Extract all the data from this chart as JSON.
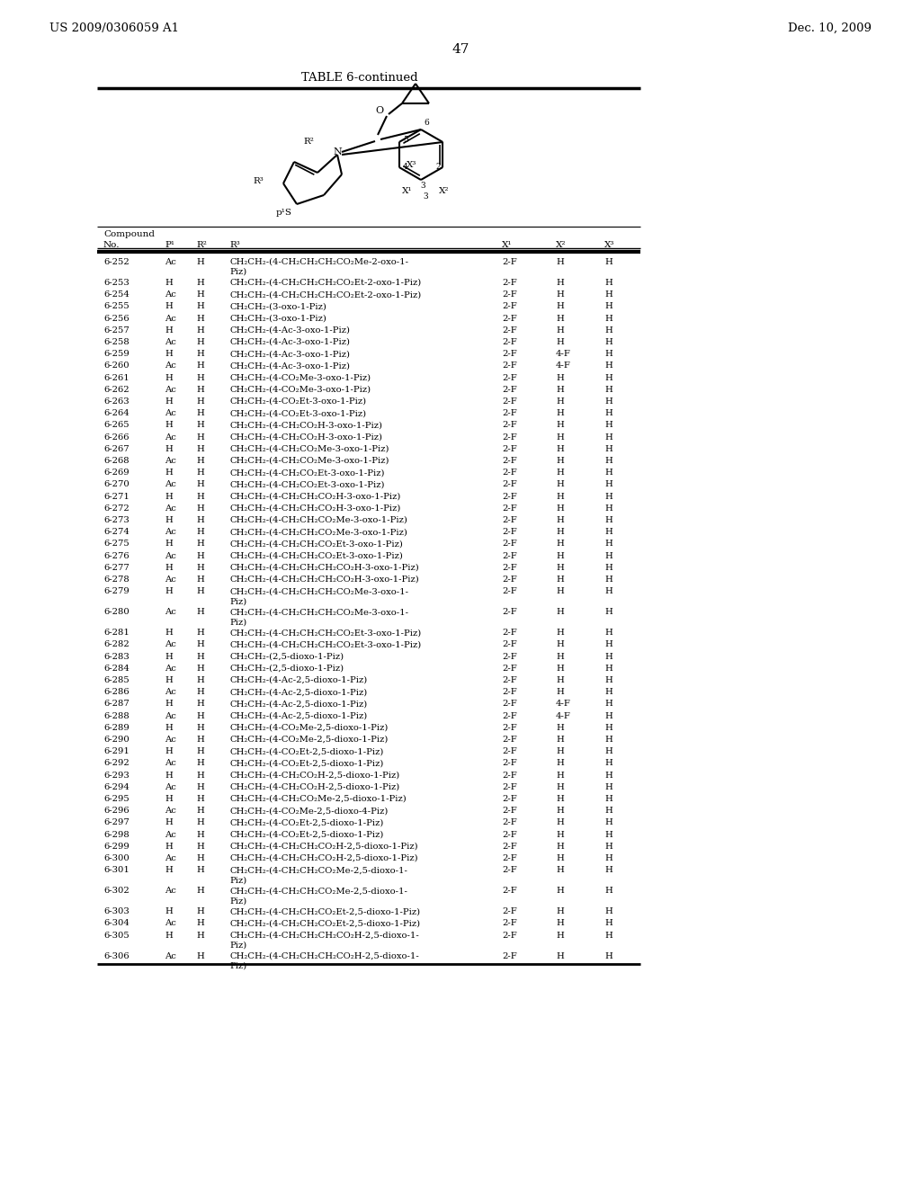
{
  "header_left": "US 2009/0306059 A1",
  "header_right": "Dec. 10, 2009",
  "page_number": "47",
  "table_title": "TABLE 6-continued",
  "rows": [
    [
      "6-252",
      "Ac",
      "H",
      "CH₂CH₂-(4-CH₂CH₂CH₂CO₂Me-2-oxo-1-",
      "Piz)",
      "2-F",
      "H",
      "H"
    ],
    [
      "6-253",
      "H",
      "H",
      "CH₂CH₂-(4-CH₂CH₂CH₂CO₂Et-2-oxo-1-Piz)",
      "",
      "2-F",
      "H",
      "H"
    ],
    [
      "6-254",
      "Ac",
      "H",
      "CH₂CH₂-(4-CH₂CH₂CH₂CO₂Et-2-oxo-1-Piz)",
      "",
      "2-F",
      "H",
      "H"
    ],
    [
      "6-255",
      "H",
      "H",
      "CH₂CH₂-(3-oxo-1-Piz)",
      "",
      "2-F",
      "H",
      "H"
    ],
    [
      "6-256",
      "Ac",
      "H",
      "CH₂CH₂-(3-oxo-1-Piz)",
      "",
      "2-F",
      "H",
      "H"
    ],
    [
      "6-257",
      "H",
      "H",
      "CH₂CH₂-(4-Ac-3-oxo-1-Piz)",
      "",
      "2-F",
      "H",
      "H"
    ],
    [
      "6-258",
      "Ac",
      "H",
      "CH₂CH₂-(4-Ac-3-oxo-1-Piz)",
      "",
      "2-F",
      "H",
      "H"
    ],
    [
      "6-259",
      "H",
      "H",
      "CH₂CH₂-(4-Ac-3-oxo-1-Piz)",
      "",
      "2-F",
      "4-F",
      "H"
    ],
    [
      "6-260",
      "Ac",
      "H",
      "CH₂CH₂-(4-Ac-3-oxo-1-Piz)",
      "",
      "2-F",
      "4-F",
      "H"
    ],
    [
      "6-261",
      "H",
      "H",
      "CH₂CH₂-(4-CO₂Me-3-oxo-1-Piz)",
      "",
      "2-F",
      "H",
      "H"
    ],
    [
      "6-262",
      "Ac",
      "H",
      "CH₂CH₂-(4-CO₂Me-3-oxo-1-Piz)",
      "",
      "2-F",
      "H",
      "H"
    ],
    [
      "6-263",
      "H",
      "H",
      "CH₂CH₂-(4-CO₂Et-3-oxo-1-Piz)",
      "",
      "2-F",
      "H",
      "H"
    ],
    [
      "6-264",
      "Ac",
      "H",
      "CH₂CH₂-(4-CO₂Et-3-oxo-1-Piz)",
      "",
      "2-F",
      "H",
      "H"
    ],
    [
      "6-265",
      "H",
      "H",
      "CH₂CH₂-(4-CH₂CO₂H-3-oxo-1-Piz)",
      "",
      "2-F",
      "H",
      "H"
    ],
    [
      "6-266",
      "Ac",
      "H",
      "CH₂CH₂-(4-CH₂CO₂H-3-oxo-1-Piz)",
      "",
      "2-F",
      "H",
      "H"
    ],
    [
      "6-267",
      "H",
      "H",
      "CH₂CH₂-(4-CH₂CO₂Me-3-oxo-1-Piz)",
      "",
      "2-F",
      "H",
      "H"
    ],
    [
      "6-268",
      "Ac",
      "H",
      "CH₂CH₂-(4-CH₂CO₂Me-3-oxo-1-Piz)",
      "",
      "2-F",
      "H",
      "H"
    ],
    [
      "6-269",
      "H",
      "H",
      "CH₂CH₂-(4-CH₂CO₂Et-3-oxo-1-Piz)",
      "",
      "2-F",
      "H",
      "H"
    ],
    [
      "6-270",
      "Ac",
      "H",
      "CH₂CH₂-(4-CH₂CO₂Et-3-oxo-1-Piz)",
      "",
      "2-F",
      "H",
      "H"
    ],
    [
      "6-271",
      "H",
      "H",
      "CH₂CH₂-(4-CH₂CH₂CO₂H-3-oxo-1-Piz)",
      "",
      "2-F",
      "H",
      "H"
    ],
    [
      "6-272",
      "Ac",
      "H",
      "CH₂CH₂-(4-CH₂CH₂CO₂H-3-oxo-1-Piz)",
      "",
      "2-F",
      "H",
      "H"
    ],
    [
      "6-273",
      "H",
      "H",
      "CH₂CH₂-(4-CH₂CH₂CO₂Me-3-oxo-1-Piz)",
      "",
      "2-F",
      "H",
      "H"
    ],
    [
      "6-274",
      "Ac",
      "H",
      "CH₂CH₂-(4-CH₂CH₂CO₂Me-3-oxo-1-Piz)",
      "",
      "2-F",
      "H",
      "H"
    ],
    [
      "6-275",
      "H",
      "H",
      "CH₂CH₂-(4-CH₂CH₂CO₂Et-3-oxo-1-Piz)",
      "",
      "2-F",
      "H",
      "H"
    ],
    [
      "6-276",
      "Ac",
      "H",
      "CH₂CH₂-(4-CH₂CH₂CO₂Et-3-oxo-1-Piz)",
      "",
      "2-F",
      "H",
      "H"
    ],
    [
      "6-277",
      "H",
      "H",
      "CH₂CH₂-(4-CH₂CH₂CH₂CO₂H-3-oxo-1-Piz)",
      "",
      "2-F",
      "H",
      "H"
    ],
    [
      "6-278",
      "Ac",
      "H",
      "CH₂CH₂-(4-CH₂CH₂CH₂CO₂H-3-oxo-1-Piz)",
      "",
      "2-F",
      "H",
      "H"
    ],
    [
      "6-279",
      "H",
      "H",
      "CH₂CH₂-(4-CH₂CH₂CH₂CO₂Me-3-oxo-1-",
      "Piz)",
      "2-F",
      "H",
      "H"
    ],
    [
      "6-280",
      "Ac",
      "H",
      "CH₂CH₂-(4-CH₂CH₂CH₂CO₂Me-3-oxo-1-",
      "Piz)",
      "2-F",
      "H",
      "H"
    ],
    [
      "6-281",
      "H",
      "H",
      "CH₂CH₂-(4-CH₂CH₂CH₂CO₂Et-3-oxo-1-Piz)",
      "",
      "2-F",
      "H",
      "H"
    ],
    [
      "6-282",
      "Ac",
      "H",
      "CH₂CH₂-(4-CH₂CH₂CH₂CO₂Et-3-oxo-1-Piz)",
      "",
      "2-F",
      "H",
      "H"
    ],
    [
      "6-283",
      "H",
      "H",
      "CH₂CH₂-(2,5-dioxo-1-Piz)",
      "",
      "2-F",
      "H",
      "H"
    ],
    [
      "6-284",
      "Ac",
      "H",
      "CH₂CH₂-(2,5-dioxo-1-Piz)",
      "",
      "2-F",
      "H",
      "H"
    ],
    [
      "6-285",
      "H",
      "H",
      "CH₂CH₂-(4-Ac-2,5-dioxo-1-Piz)",
      "",
      "2-F",
      "H",
      "H"
    ],
    [
      "6-286",
      "Ac",
      "H",
      "CH₂CH₂-(4-Ac-2,5-dioxo-1-Piz)",
      "",
      "2-F",
      "H",
      "H"
    ],
    [
      "6-287",
      "H",
      "H",
      "CH₂CH₂-(4-Ac-2,5-dioxo-1-Piz)",
      "",
      "2-F",
      "4-F",
      "H"
    ],
    [
      "6-288",
      "Ac",
      "H",
      "CH₂CH₂-(4-Ac-2,5-dioxo-1-Piz)",
      "",
      "2-F",
      "4-F",
      "H"
    ],
    [
      "6-289",
      "H",
      "H",
      "CH₂CH₂-(4-CO₂Me-2,5-dioxo-1-Piz)",
      "",
      "2-F",
      "H",
      "H"
    ],
    [
      "6-290",
      "Ac",
      "H",
      "CH₂CH₂-(4-CO₂Me-2,5-dioxo-1-Piz)",
      "",
      "2-F",
      "H",
      "H"
    ],
    [
      "6-291",
      "H",
      "H",
      "CH₂CH₂-(4-CO₂Et-2,5-dioxo-1-Piz)",
      "",
      "2-F",
      "H",
      "H"
    ],
    [
      "6-292",
      "Ac",
      "H",
      "CH₂CH₂-(4-CO₂Et-2,5-dioxo-1-Piz)",
      "",
      "2-F",
      "H",
      "H"
    ],
    [
      "6-293",
      "H",
      "H",
      "CH₂CH₂-(4-CH₂CO₂H-2,5-dioxo-1-Piz)",
      "",
      "2-F",
      "H",
      "H"
    ],
    [
      "6-294",
      "Ac",
      "H",
      "CH₂CH₂-(4-CH₂CO₂H-2,5-dioxo-1-Piz)",
      "",
      "2-F",
      "H",
      "H"
    ],
    [
      "6-295",
      "H",
      "H",
      "CH₂CH₂-(4-CH₂CO₂Me-2,5-dioxo-1-Piz)",
      "",
      "2-F",
      "H",
      "H"
    ],
    [
      "6-296",
      "Ac",
      "H",
      "CH₂CH₂-(4-CO₂Me-2,5-dioxo-4-Piz)",
      "",
      "2-F",
      "H",
      "H"
    ],
    [
      "6-297",
      "H",
      "H",
      "CH₂CH₂-(4-CO₂Et-2,5-dioxo-1-Piz)",
      "",
      "2-F",
      "H",
      "H"
    ],
    [
      "6-298",
      "Ac",
      "H",
      "CH₂CH₂-(4-CO₂Et-2,5-dioxo-1-Piz)",
      "",
      "2-F",
      "H",
      "H"
    ],
    [
      "6-299",
      "H",
      "H",
      "CH₂CH₂-(4-CH₂CH₂CO₂H-2,5-dioxo-1-Piz)",
      "",
      "2-F",
      "H",
      "H"
    ],
    [
      "6-300",
      "Ac",
      "H",
      "CH₂CH₂-(4-CH₂CH₂CO₂H-2,5-dioxo-1-Piz)",
      "",
      "2-F",
      "H",
      "H"
    ],
    [
      "6-301",
      "H",
      "H",
      "CH₂CH₂-(4-CH₂CH₂CO₂Me-2,5-dioxo-1-",
      "Piz)",
      "2-F",
      "H",
      "H"
    ],
    [
      "6-302",
      "Ac",
      "H",
      "CH₂CH₂-(4-CH₂CH₂CO₂Me-2,5-dioxo-1-",
      "Piz)",
      "2-F",
      "H",
      "H"
    ],
    [
      "6-303",
      "H",
      "H",
      "CH₂CH₂-(4-CH₂CH₂CO₂Et-2,5-dioxo-1-Piz)",
      "",
      "2-F",
      "H",
      "H"
    ],
    [
      "6-304",
      "Ac",
      "H",
      "CH₂CH₂-(4-CH₂CH₂CO₂Et-2,5-dioxo-1-Piz)",
      "",
      "2-F",
      "H",
      "H"
    ],
    [
      "6-305",
      "H",
      "H",
      "CH₂CH₂-(4-CH₂CH₂CH₂CO₂H-2,5-dioxo-1-",
      "Piz)",
      "2-F",
      "H",
      "H"
    ],
    [
      "6-306",
      "Ac",
      "H",
      "CH₂CH₂-(4-CH₂CH₂CH₂CO₂H-2,5-dioxo-1-",
      "Piz)",
      "2-F",
      "H",
      "H"
    ]
  ],
  "bg_color": "#ffffff",
  "text_color": "#000000"
}
